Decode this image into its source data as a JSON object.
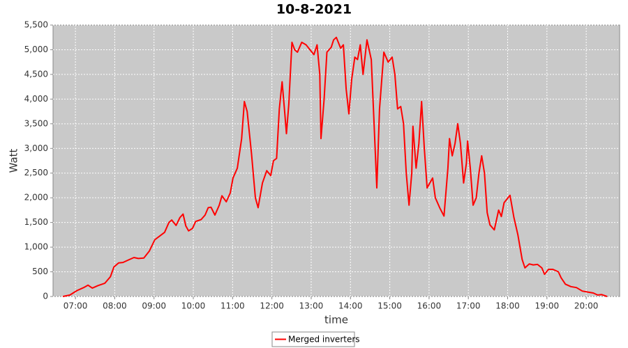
{
  "chart_data": {
    "type": "line",
    "title": "10-8-2021",
    "x_label": "time",
    "y_label": "Watt",
    "x": [
      6.68,
      6.86,
      7.04,
      7.21,
      7.32,
      7.43,
      7.57,
      7.75,
      7.89,
      7.98,
      8.1,
      8.21,
      8.35,
      8.49,
      8.6,
      8.74,
      8.88,
      9.02,
      9.17,
      9.27,
      9.38,
      9.45,
      9.56,
      9.66,
      9.74,
      9.81,
      9.88,
      9.98,
      10.06,
      10.2,
      10.3,
      10.38,
      10.45,
      10.55,
      10.66,
      10.73,
      10.84,
      10.94,
      11.01,
      11.12,
      11.23,
      11.3,
      11.37,
      11.48,
      11.58,
      11.65,
      11.76,
      11.87,
      11.97,
      12.04,
      12.12,
      12.19,
      12.26,
      12.33,
      12.37,
      12.43,
      12.51,
      12.58,
      12.65,
      12.76,
      12.87,
      12.97,
      13.07,
      13.15,
      13.22,
      13.25,
      13.33,
      13.4,
      13.51,
      13.57,
      13.64,
      13.75,
      13.82,
      13.89,
      13.96,
      14.03,
      14.11,
      14.18,
      14.25,
      14.32,
      14.42,
      14.53,
      14.6,
      14.67,
      14.74,
      14.85,
      14.96,
      15.06,
      15.13,
      15.2,
      15.28,
      15.35,
      15.42,
      15.49,
      15.56,
      15.59,
      15.67,
      15.74,
      15.81,
      15.88,
      15.95,
      16.02,
      16.09,
      16.16,
      16.27,
      16.38,
      16.48,
      16.52,
      16.59,
      16.66,
      16.73,
      16.8,
      16.88,
      16.95,
      16.98,
      17.05,
      17.12,
      17.2,
      17.27,
      17.34,
      17.41,
      17.48,
      17.55,
      17.66,
      17.77,
      17.84,
      17.91,
      18.06,
      18.16,
      18.26,
      18.37,
      18.44,
      18.55,
      18.65,
      18.76,
      18.87,
      18.94,
      19.04,
      19.15,
      19.29,
      19.36,
      19.47,
      19.61,
      19.75,
      19.9,
      20.04,
      20.18,
      20.29,
      20.39,
      20.53
    ],
    "series": [
      {
        "name": "Merged inverters",
        "color": "#ff0000",
        "values": [
          0,
          30,
          120,
          180,
          230,
          170,
          220,
          270,
          400,
          600,
          680,
          690,
          740,
          790,
          770,
          780,
          920,
          1150,
          1240,
          1300,
          1500,
          1550,
          1440,
          1600,
          1670,
          1430,
          1330,
          1380,
          1520,
          1560,
          1650,
          1800,
          1810,
          1650,
          1850,
          2040,
          1920,
          2100,
          2400,
          2600,
          3200,
          3950,
          3750,
          2900,
          2000,
          1800,
          2300,
          2550,
          2450,
          2750,
          2800,
          3800,
          4350,
          3700,
          3300,
          3900,
          5150,
          5000,
          4950,
          5150,
          5100,
          5000,
          4900,
          5100,
          4500,
          3200,
          4000,
          4950,
          5050,
          5200,
          5250,
          5030,
          5100,
          4200,
          3700,
          4400,
          4850,
          4800,
          5100,
          4500,
          5200,
          4800,
          3500,
          2200,
          3800,
          4950,
          4750,
          4850,
          4500,
          3800,
          3850,
          3500,
          2500,
          1850,
          2500,
          3450,
          2600,
          3100,
          3950,
          3000,
          2200,
          2300,
          2400,
          2000,
          1800,
          1630,
          2600,
          3200,
          2850,
          3100,
          3500,
          3100,
          2300,
          2700,
          3150,
          2600,
          1850,
          2000,
          2500,
          2850,
          2500,
          1700,
          1450,
          1350,
          1750,
          1620,
          1900,
          2050,
          1600,
          1250,
          750,
          580,
          660,
          640,
          650,
          580,
          450,
          550,
          550,
          500,
          380,
          250,
          200,
          180,
          110,
          90,
          70,
          30,
          40,
          0
        ]
      }
    ],
    "xlim": [
      6.43,
      20.85
    ],
    "xticks": [
      {
        "value": 7,
        "label": "07:00"
      },
      {
        "value": 8,
        "label": "08:00"
      },
      {
        "value": 9,
        "label": "09:00"
      },
      {
        "value": 10,
        "label": "10:00"
      },
      {
        "value": 11,
        "label": "11:00"
      },
      {
        "value": 12,
        "label": "12:00"
      },
      {
        "value": 13,
        "label": "13:00"
      },
      {
        "value": 14,
        "label": "14:00"
      },
      {
        "value": 15,
        "label": "15:00"
      },
      {
        "value": 16,
        "label": "16:00"
      },
      {
        "value": 17,
        "label": "17:00"
      },
      {
        "value": 18,
        "label": "18:00"
      },
      {
        "value": 19,
        "label": "19:00"
      },
      {
        "value": 20,
        "label": "20:00"
      }
    ],
    "ylim": [
      0,
      5500
    ],
    "yticks": [
      0,
      500,
      {
        "value": 1000,
        "label": "1,000"
      },
      {
        "value": 1500,
        "label": "1,500"
      },
      {
        "value": 2000,
        "label": "2,000"
      },
      {
        "value": 2500,
        "label": "2,500"
      },
      {
        "value": 3000,
        "label": "3,000"
      },
      {
        "value": 3500,
        "label": "3,500"
      },
      {
        "value": 4000,
        "label": "4,000"
      },
      {
        "value": 4500,
        "label": "4,500"
      },
      {
        "value": 5000,
        "label": "5,000"
      },
      {
        "value": 5500,
        "label": "5,500"
      }
    ],
    "grid": true,
    "legend": "bottom"
  }
}
